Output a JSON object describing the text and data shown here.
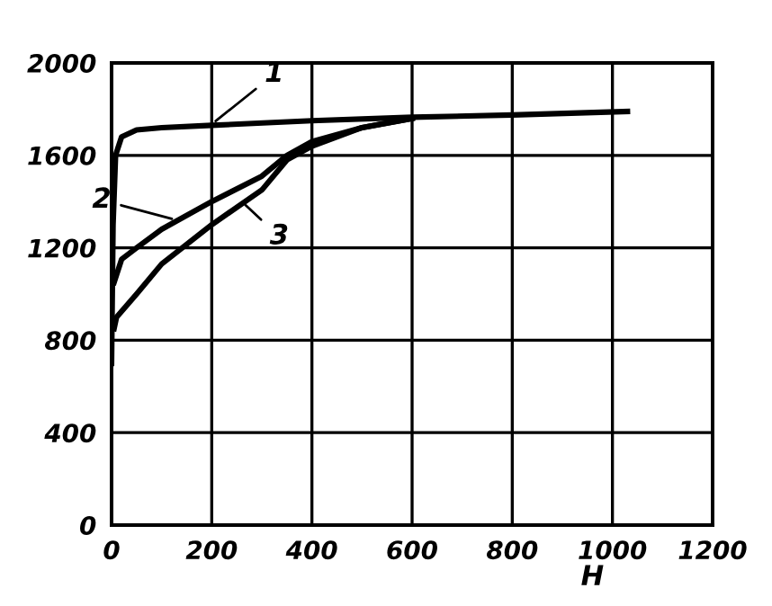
{
  "chart_data": {
    "type": "line",
    "xlabel": "H",
    "series": [
      {
        "color": "#000000",
        "x": [
          0,
          3,
          8,
          20,
          50,
          100,
          200,
          400,
          600,
          800,
          1030
        ],
        "values": [
          700,
          1300,
          1600,
          1680,
          1710,
          1720,
          1730,
          1750,
          1765,
          1775,
          1790
        ]
      },
      {
        "color": "#000000",
        "x": [
          5,
          20,
          50,
          100,
          200,
          300,
          350,
          400,
          500,
          600
        ],
        "values": [
          1050,
          1150,
          1200,
          1280,
          1400,
          1510,
          1600,
          1660,
          1720,
          1760
        ]
      },
      {
        "color": "#000000",
        "x": [
          5,
          10,
          50,
          100,
          200,
          300,
          350,
          400,
          500,
          600
        ],
        "values": [
          850,
          900,
          1000,
          1130,
          1300,
          1450,
          1580,
          1640,
          1720,
          1760
        ]
      }
    ],
    "annotations": [
      {
        "text": "1",
        "x": 200,
        "y": 1735
      },
      {
        "text": "2",
        "x": 130,
        "y": 1320
      },
      {
        "text": "3",
        "x": 260,
        "y": 1400
      }
    ],
    "xlim": [
      0,
      1200
    ],
    "ylim": [
      0,
      2000
    ],
    "xticks": [
      0,
      200,
      400,
      600,
      800,
      1000,
      1200
    ],
    "yticks": [
      0,
      400,
      800,
      1200,
      1600,
      2000
    ],
    "grid": true,
    "marker": "none",
    "line_style": "solid",
    "legend": false
  }
}
